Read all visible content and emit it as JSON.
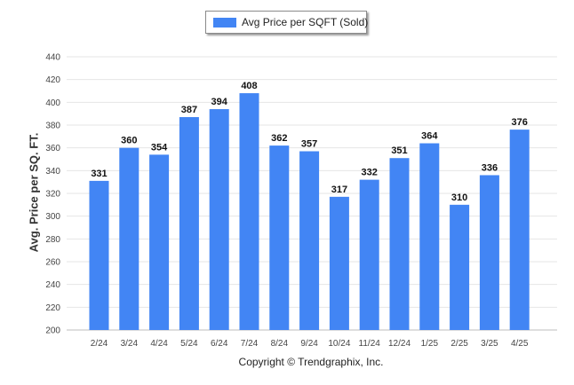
{
  "chart_data": {
    "type": "bar",
    "categories": [
      "2/24",
      "3/24",
      "4/24",
      "5/24",
      "6/24",
      "7/24",
      "8/24",
      "9/24",
      "10/24",
      "11/24",
      "12/24",
      "1/25",
      "2/25",
      "3/25",
      "4/25"
    ],
    "series": [
      {
        "name": "Avg Price per SQFT (Sold)",
        "values": [
          331,
          360,
          354,
          387,
          394,
          408,
          362,
          357,
          317,
          332,
          351,
          364,
          310,
          336,
          376
        ]
      }
    ],
    "ylabel": "Avg. Price per SQ. FT.",
    "xlabel": "",
    "ylim": [
      200,
      440
    ],
    "yticks": [
      200,
      220,
      240,
      260,
      280,
      300,
      320,
      340,
      360,
      380,
      400,
      420,
      440
    ],
    "grid": true,
    "legend_placement": "top-center",
    "bar_color": "#4285f4",
    "data_labels": true
  },
  "footer": {
    "copyright": "Copyright © Trendgraphix, Inc."
  }
}
